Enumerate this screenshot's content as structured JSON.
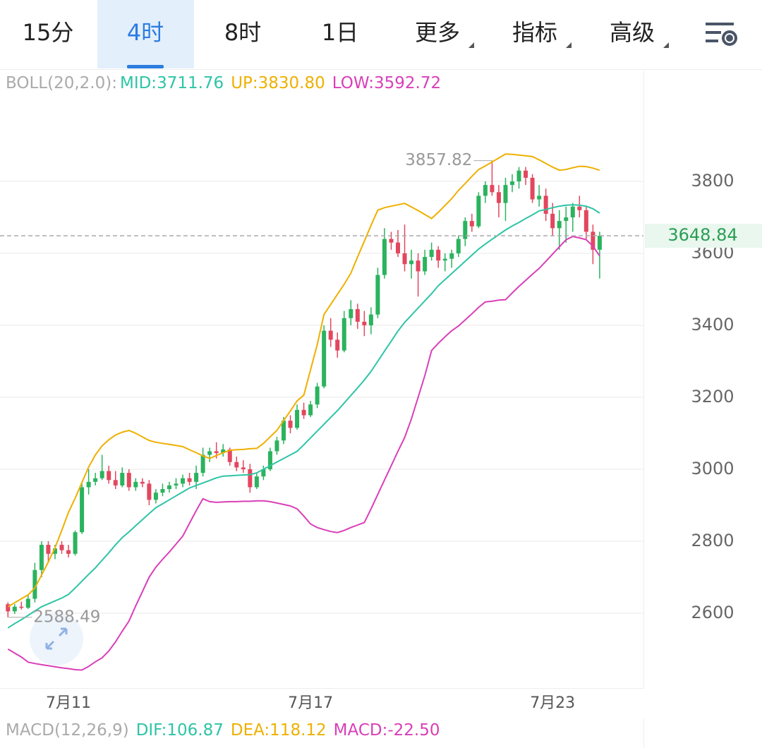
{
  "tabs": [
    "15分",
    "4时",
    "8时",
    "1日",
    "更多",
    "指标",
    "高级"
  ],
  "active_tab": 1,
  "chart_data": {
    "type": "candlestick",
    "indicator": "BOLL(20,2.0):",
    "up_color": "#2bb35e",
    "down_color": "#e2475f",
    "categories": [
      null,
      null,
      null,
      null,
      null,
      null,
      null,
      null,
      null,
      "7月11",
      null,
      null,
      null,
      null,
      null,
      null,
      null,
      null,
      null,
      null,
      null,
      null,
      null,
      null,
      null,
      null,
      null,
      null,
      null,
      null,
      null,
      null,
      null,
      null,
      null,
      null,
      null,
      null,
      null,
      null,
      null,
      null,
      null,
      null,
      null,
      "7月17",
      null,
      null,
      null,
      null,
      null,
      null,
      null,
      null,
      null,
      null,
      null,
      null,
      null,
      null,
      null,
      null,
      null,
      null,
      null,
      null,
      null,
      null,
      null,
      null,
      null,
      null,
      null,
      null,
      null,
      null,
      null,
      null,
      null,
      null,
      null,
      "7月23",
      null,
      null,
      null,
      null,
      null,
      null,
      null
    ],
    "ohlc": [
      [
        2625,
        2630,
        2588.49,
        2605
      ],
      [
        2605,
        2625,
        2598,
        2618
      ],
      [
        2618,
        2632,
        2610,
        2615
      ],
      [
        2615,
        2650,
        2612,
        2640
      ],
      [
        2640,
        2740,
        2630,
        2720
      ],
      [
        2720,
        2800,
        2700,
        2790
      ],
      [
        2790,
        2800,
        2740,
        2765
      ],
      [
        2765,
        2790,
        2750,
        2780
      ],
      [
        2790,
        2800,
        2765,
        2775
      ],
      [
        2775,
        2790,
        2755,
        2765
      ],
      [
        2765,
        2830,
        2760,
        2825
      ],
      [
        2825,
        2960,
        2820,
        2950
      ],
      [
        2950,
        3000,
        2930,
        2965
      ],
      [
        2965,
        2990,
        2955,
        2975
      ],
      [
        2975,
        3040,
        2970,
        2995
      ],
      [
        2995,
        3010,
        2960,
        2970
      ],
      [
        2970,
        2995,
        2945,
        2955
      ],
      [
        2955,
        3005,
        2950,
        2990
      ],
      [
        2990,
        3000,
        2940,
        2950
      ],
      [
        2950,
        2975,
        2940,
        2965
      ],
      [
        2965,
        2975,
        2950,
        2960
      ],
      [
        2960,
        2970,
        2900,
        2915
      ],
      [
        2915,
        2945,
        2905,
        2935
      ],
      [
        2935,
        2960,
        2925,
        2945
      ],
      [
        2945,
        2965,
        2935,
        2955
      ],
      [
        2955,
        2975,
        2945,
        2960
      ],
      [
        2960,
        2985,
        2950,
        2975
      ],
      [
        2975,
        2990,
        2955,
        2965
      ],
      [
        2965,
        3010,
        2945,
        2990
      ],
      [
        2990,
        3060,
        2980,
        3040
      ],
      [
        3040,
        3060,
        3020,
        3050
      ],
      [
        3050,
        3075,
        3030,
        3045
      ],
      [
        3045,
        3070,
        3035,
        3055
      ],
      [
        3055,
        3060,
        3010,
        3020
      ],
      [
        3020,
        3035,
        2995,
        3005
      ],
      [
        3005,
        3025,
        2990,
        3000
      ],
      [
        3000,
        3015,
        2935,
        2950
      ],
      [
        2950,
        2990,
        2945,
        2980
      ],
      [
        2980,
        3010,
        2970,
        3000
      ],
      [
        3000,
        3060,
        2995,
        3050
      ],
      [
        3050,
        3090,
        3040,
        3080
      ],
      [
        3080,
        3145,
        3070,
        3135
      ],
      [
        3135,
        3150,
        3100,
        3115
      ],
      [
        3115,
        3180,
        3110,
        3165
      ],
      [
        3165,
        3185,
        3140,
        3150
      ],
      [
        3150,
        3190,
        3145,
        3180
      ],
      [
        3180,
        3240,
        3170,
        3230
      ],
      [
        3230,
        3400,
        3225,
        3385
      ],
      [
        3385,
        3420,
        3340,
        3360
      ],
      [
        3360,
        3380,
        3310,
        3330
      ],
      [
        3330,
        3440,
        3325,
        3420
      ],
      [
        3420,
        3470,
        3400,
        3445
      ],
      [
        3445,
        3460,
        3390,
        3410
      ],
      [
        3410,
        3440,
        3370,
        3400
      ],
      [
        3400,
        3450,
        3375,
        3430
      ],
      [
        3430,
        3560,
        3420,
        3540
      ],
      [
        3540,
        3670,
        3530,
        3640
      ],
      [
        3640,
        3660,
        3610,
        3630
      ],
      [
        3630,
        3665,
        3590,
        3600
      ],
      [
        3600,
        3680,
        3550,
        3570
      ],
      [
        3570,
        3610,
        3530,
        3580
      ],
      [
        3580,
        3600,
        3480,
        3550
      ],
      [
        3550,
        3610,
        3540,
        3590
      ],
      [
        3590,
        3630,
        3580,
        3610
      ],
      [
        3610,
        3620,
        3560,
        3580
      ],
      [
        3580,
        3600,
        3550,
        3585
      ],
      [
        3585,
        3610,
        3560,
        3600
      ],
      [
        3600,
        3650,
        3590,
        3640
      ],
      [
        3640,
        3700,
        3620,
        3690
      ],
      [
        3690,
        3710,
        3660,
        3675
      ],
      [
        3675,
        3770,
        3670,
        3760
      ],
      [
        3760,
        3800,
        3740,
        3790
      ],
      [
        3790,
        3857.82,
        3760,
        3770
      ],
      [
        3770,
        3790,
        3700,
        3740
      ],
      [
        3740,
        3810,
        3690,
        3790
      ],
      [
        3790,
        3820,
        3770,
        3800
      ],
      [
        3800,
        3840,
        3780,
        3830
      ],
      [
        3830,
        3840,
        3790,
        3810
      ],
      [
        3810,
        3820,
        3740,
        3750
      ],
      [
        3750,
        3790,
        3730,
        3760
      ],
      [
        3760,
        3780,
        3690,
        3710
      ],
      [
        3710,
        3740,
        3650,
        3670
      ],
      [
        3670,
        3720,
        3610,
        3690
      ],
      [
        3690,
        3730,
        3630,
        3700
      ],
      [
        3700,
        3740,
        3660,
        3730
      ],
      [
        3730,
        3760,
        3700,
        3720
      ],
      [
        3720,
        3730,
        3640,
        3660
      ],
      [
        3660,
        3680,
        3570,
        3610
      ],
      [
        3610,
        3660,
        3530,
        3648.84
      ]
    ],
    "bands": [
      {
        "name": "MID:",
        "color": "#2ec4a6",
        "value_label": "3711.76",
        "values": [
          2559,
          2571,
          2582,
          2594,
          2606,
          2618,
          2626,
          2634,
          2642,
          2652,
          2670,
          2689,
          2708,
          2726,
          2747,
          2768,
          2790,
          2810,
          2826,
          2843,
          2860,
          2877,
          2893,
          2904,
          2915,
          2926,
          2937,
          2948,
          2955,
          2962,
          2969,
          2976,
          2981,
          2982,
          2983,
          2984,
          2985,
          2990,
          3000,
          3010,
          3020,
          3030,
          3040,
          3050,
          3068,
          3087,
          3106,
          3125,
          3144,
          3163,
          3184,
          3205,
          3226,
          3248,
          3272,
          3300,
          3328,
          3356,
          3384,
          3408,
          3428,
          3448,
          3468,
          3488,
          3510,
          3527,
          3544,
          3561,
          3578,
          3595,
          3612,
          3626,
          3639,
          3652,
          3665,
          3676,
          3686,
          3697,
          3707,
          3718,
          3722,
          3727,
          3731,
          3734,
          3735,
          3734,
          3731,
          3724,
          3711.76
        ]
      },
      {
        "name": "UP:",
        "color": "#eeb000",
        "value_label": "3830.80",
        "values": [
          2618,
          2629,
          2640,
          2651,
          2670,
          2706,
          2742,
          2782,
          2830,
          2880,
          2920,
          2963,
          3006,
          3040,
          3065,
          3082,
          3095,
          3103,
          3108,
          3100,
          3090,
          3080,
          3075,
          3072,
          3069,
          3066,
          3063,
          3054,
          3046,
          3037,
          3030,
          3038,
          3046,
          3053,
          3054,
          3055,
          3057,
          3058,
          3072,
          3090,
          3108,
          3135,
          3162,
          3190,
          3206,
          3276,
          3346,
          3430,
          3458,
          3486,
          3514,
          3545,
          3590,
          3634,
          3678,
          3720,
          3727,
          3731,
          3735,
          3739,
          3729,
          3719,
          3708,
          3697,
          3714,
          3733,
          3752,
          3775,
          3794,
          3814,
          3833,
          3843,
          3854,
          3865,
          3876,
          3875,
          3873,
          3871,
          3869,
          3860,
          3850,
          3840,
          3831,
          3833,
          3838,
          3842,
          3841,
          3837,
          3830.8
        ]
      },
      {
        "name": "LOW:",
        "color": "#d93fb8",
        "value_label": "3592.72",
        "values": [
          2500,
          2489,
          2478,
          2464,
          2460,
          2457,
          2454,
          2451,
          2448,
          2446,
          2443,
          2442,
          2452,
          2465,
          2476,
          2495,
          2520,
          2550,
          2578,
          2620,
          2660,
          2700,
          2728,
          2750,
          2770,
          2792,
          2814,
          2850,
          2885,
          2918,
          2910,
          2908,
          2909,
          2910,
          2910,
          2911,
          2911,
          2912,
          2912,
          2910,
          2906,
          2902,
          2898,
          2890,
          2870,
          2848,
          2838,
          2832,
          2827,
          2824,
          2830,
          2838,
          2845,
          2852,
          2890,
          2930,
          2970,
          3010,
          3050,
          3088,
          3140,
          3200,
          3260,
          3330,
          3350,
          3368,
          3385,
          3398,
          3415,
          3432,
          3450,
          3465,
          3467,
          3470,
          3471,
          3490,
          3508,
          3525,
          3542,
          3558,
          3578,
          3598,
          3618,
          3638,
          3647,
          3643,
          3638,
          3620,
          3592.72
        ]
      }
    ],
    "ylim": [
      2392,
      4108
    ],
    "yticks": [
      2600,
      2800,
      3000,
      3200,
      3400,
      3600,
      3800
    ],
    "grid": true
  },
  "macd_header": {
    "title": "MACD(12,26,9)",
    "items": [
      {
        "text": "DIF:106.87",
        "color": "#2ec4a6"
      },
      {
        "text": "DEA:118.12",
        "color": "#eeb000"
      },
      {
        "text": "MACD:-22.50",
        "color": "#d93fb8"
      }
    ]
  }
}
